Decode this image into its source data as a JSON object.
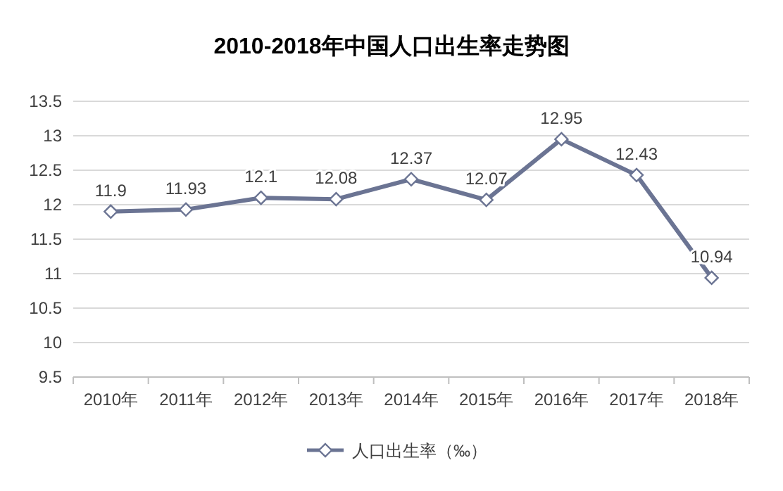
{
  "chart_data": {
    "type": "line",
    "title": "2010-2018年中国人口出生率走势图",
    "categories": [
      "2010年",
      "2011年",
      "2012年",
      "2013年",
      "2014年",
      "2015年",
      "2016年",
      "2017年",
      "2018年"
    ],
    "series": [
      {
        "name": "人口出生率（‰）",
        "color": "#6b7493",
        "values": [
          11.9,
          11.93,
          12.1,
          12.08,
          12.37,
          12.07,
          12.95,
          12.43,
          10.94
        ]
      }
    ],
    "ylim": [
      9.5,
      13.5
    ],
    "yticks": [
      9.5,
      10,
      10.5,
      11,
      11.5,
      12,
      12.5,
      13,
      13.5
    ],
    "grid": "y",
    "legend": "bottom",
    "marker": "diamond",
    "line_style": "solid",
    "data_labels": true
  }
}
